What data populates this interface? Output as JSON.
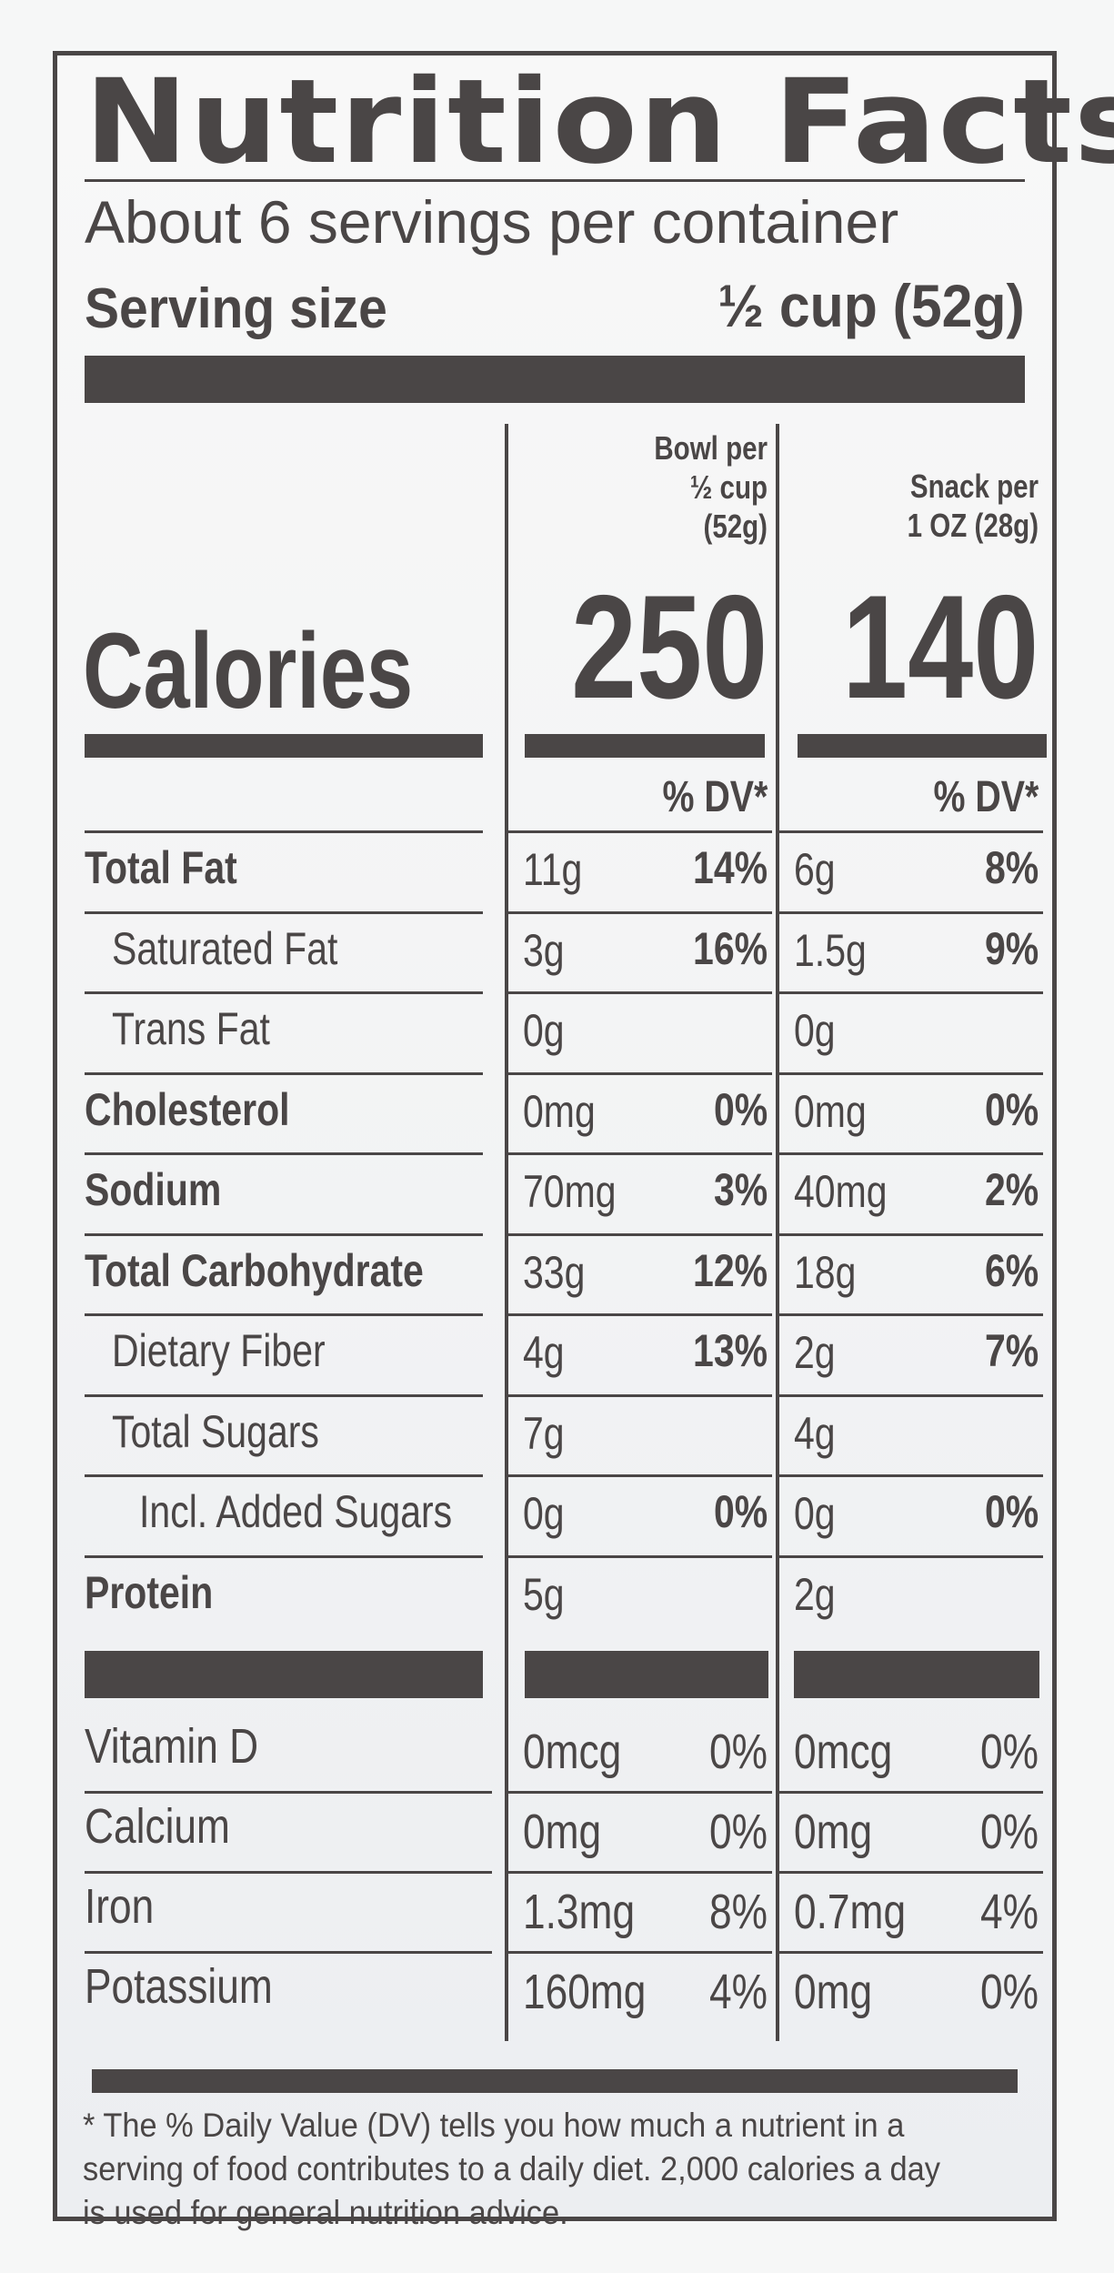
{
  "title": "Nutrition Facts",
  "servings_per_container": "About 6 servings per container",
  "serving_size": {
    "label": "Serving size",
    "value": "½ cup (52g)"
  },
  "columns": [
    {
      "line1": "Bowl per",
      "line2": "½ cup",
      "line3": "(52g)",
      "calories": "250",
      "dv_label": "% DV*"
    },
    {
      "line1": "Snack per",
      "line2": "1 OZ (28g)",
      "calories": "140",
      "dv_label": "% DV*"
    }
  ],
  "calories_label": "Calories",
  "nutrients": [
    {
      "name": "Total Fat",
      "bold": true,
      "indent": 0,
      "c1_amt": "11g",
      "c1_dv": "14%",
      "c2_amt": "6g",
      "c2_dv": "8%"
    },
    {
      "name": "Saturated Fat",
      "bold": false,
      "indent": 1,
      "c1_amt": "3g",
      "c1_dv": "16%",
      "c2_amt": "1.5g",
      "c2_dv": "9%"
    },
    {
      "name": "Trans Fat",
      "bold": false,
      "indent": 1,
      "c1_amt": "0g",
      "c1_dv": "",
      "c2_amt": "0g",
      "c2_dv": ""
    },
    {
      "name": "Cholesterol",
      "bold": true,
      "indent": 0,
      "c1_amt": "0mg",
      "c1_dv": "0%",
      "c2_amt": "0mg",
      "c2_dv": "0%"
    },
    {
      "name": "Sodium",
      "bold": true,
      "indent": 0,
      "c1_amt": "70mg",
      "c1_dv": "3%",
      "c2_amt": "40mg",
      "c2_dv": "2%"
    },
    {
      "name": "Total Carbohydrate",
      "bold": true,
      "indent": 0,
      "c1_amt": "33g",
      "c1_dv": "12%",
      "c2_amt": "18g",
      "c2_dv": "6%"
    },
    {
      "name": "Dietary Fiber",
      "bold": false,
      "indent": 1,
      "c1_amt": "4g",
      "c1_dv": "13%",
      "c2_amt": "2g",
      "c2_dv": "7%"
    },
    {
      "name": "Total Sugars",
      "bold": false,
      "indent": 1,
      "c1_amt": "7g",
      "c1_dv": "",
      "c2_amt": "4g",
      "c2_dv": ""
    },
    {
      "name": "Incl. Added Sugars",
      "bold": false,
      "indent": 2,
      "c1_amt": "0g",
      "c1_dv": "0%",
      "c2_amt": "0g",
      "c2_dv": "0%"
    },
    {
      "name": "Protein",
      "bold": true,
      "indent": 0,
      "c1_amt": "5g",
      "c1_dv": "",
      "c2_amt": "2g",
      "c2_dv": ""
    }
  ],
  "vitamins": [
    {
      "name": "Vitamin D",
      "c1_amt": "0mcg",
      "c1_dv": "0%",
      "c2_amt": "0mcg",
      "c2_dv": "0%"
    },
    {
      "name": "Calcium",
      "c1_amt": "0mg",
      "c1_dv": "0%",
      "c2_amt": "0mg",
      "c2_dv": "0%"
    },
    {
      "name": "Iron",
      "c1_amt": "1.3mg",
      "c1_dv": "8%",
      "c2_amt": "0.7mg",
      "c2_dv": "4%"
    },
    {
      "name": "Potassium",
      "c1_amt": "160mg",
      "c1_dv": "4%",
      "c2_amt": "0mg",
      "c2_dv": "0%"
    }
  ],
  "footnote": "* The % Daily Value (DV) tells you how much a nutrient in a serving of food contributes to a daily diet. 2,000 calories a day is used for general nutrition advice.",
  "colors": {
    "ink": "#4a4646",
    "background": "#f6f7f7"
  }
}
